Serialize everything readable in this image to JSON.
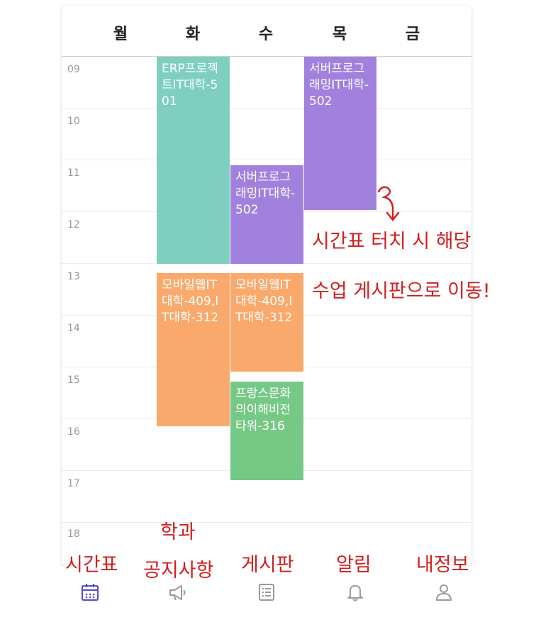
{
  "days": [
    "월",
    "화",
    "수",
    "목",
    "금"
  ],
  "hours": [
    "09",
    "10",
    "11",
    "12",
    "13",
    "14",
    "15",
    "16",
    "17",
    "18"
  ],
  "courses": [
    {
      "id": "erp",
      "text": "ERP프로젝트IT대학-501",
      "day": "화",
      "color": "#7ecfbf"
    },
    {
      "id": "server-thu",
      "text": "서버프로그래밍IT대학-502",
      "day": "목",
      "color": "#a181dd"
    },
    {
      "id": "server-wed",
      "text": "서버프로그래밍IT대학-502",
      "day": "수",
      "color": "#a181dd"
    },
    {
      "id": "mobile-tue",
      "text": "모바일웹IT대학-409,IT대학-312",
      "day": "화",
      "color": "#f9a96b"
    },
    {
      "id": "mobile-wed",
      "text": "모바일웹IT대학-409,IT대학-312",
      "day": "수",
      "color": "#f9a96b"
    },
    {
      "id": "french",
      "text": "프랑스문화의이해비전타워-316",
      "day": "수",
      "color": "#76c985"
    }
  ],
  "annotations": {
    "touch_line1": "시간표 터치 시 해당",
    "touch_line2": "수업 게시판으로 이동!",
    "tab_timetable": "시간표",
    "tab_notice_line1": "학과",
    "tab_notice_line2": "공지사항",
    "tab_board": "게시판",
    "tab_alarm": "알림",
    "tab_myinfo": "내정보"
  },
  "tabs": [
    {
      "id": "timetable",
      "icon": "calendar-icon",
      "active": true
    },
    {
      "id": "notice",
      "icon": "megaphone-icon",
      "active": false
    },
    {
      "id": "board",
      "icon": "list-icon",
      "active": false
    },
    {
      "id": "alarm",
      "icon": "bell-icon",
      "active": false
    },
    {
      "id": "myinfo",
      "icon": "person-icon",
      "active": false
    }
  ],
  "colors": {
    "active_tab": "#5a4fc8",
    "inactive_tab": "#9a9a9a",
    "annotation": "#d21f1f"
  }
}
